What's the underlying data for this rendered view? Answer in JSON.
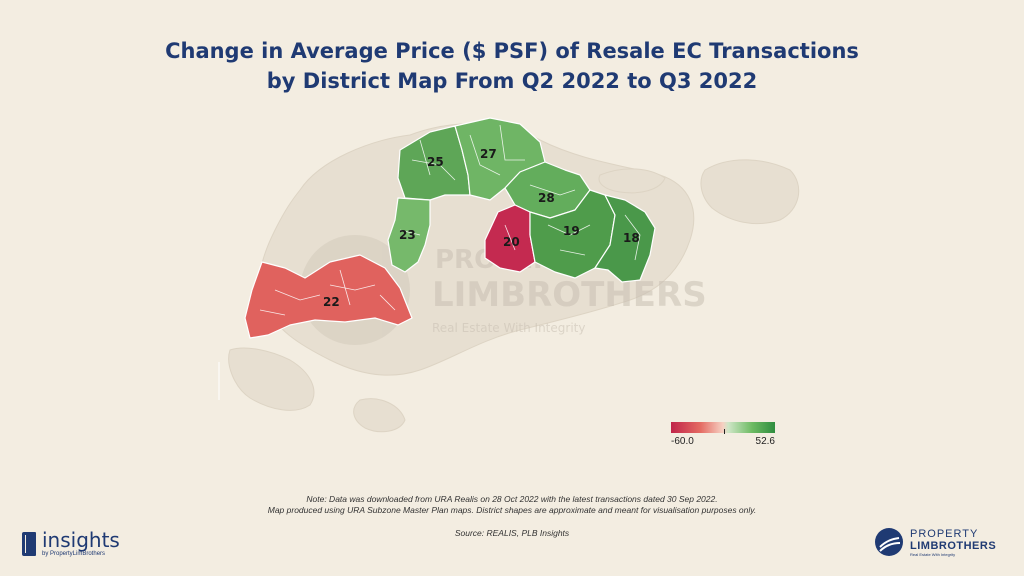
{
  "title": {
    "line1": "Change in Average Price ($ PSF) of Resale EC Transactions",
    "line2": "by District Map From Q2 2022 to Q3 2022"
  },
  "map": {
    "districts": [
      {
        "id": "25",
        "label": "25",
        "color": "#5ea657"
      },
      {
        "id": "27",
        "label": "27",
        "color": "#6fb565"
      },
      {
        "id": "28",
        "label": "28",
        "color": "#63ad5c"
      },
      {
        "id": "23",
        "label": "23",
        "color": "#76b96b"
      },
      {
        "id": "20",
        "label": "20",
        "color": "#c42a50"
      },
      {
        "id": "19",
        "label": "19",
        "color": "#4f9c4b"
      },
      {
        "id": "18",
        "label": "18",
        "color": "#4a984a"
      },
      {
        "id": "22",
        "label": "22",
        "color": "#e0625e"
      }
    ],
    "watermark": {
      "line1": "PROPERTY",
      "line2": "LIMBROTHERS",
      "line3": "Real Estate With Integrity"
    }
  },
  "legend": {
    "min_label": "-60.0",
    "max_label": "52.6",
    "min_value": -60.0,
    "max_value": 52.6,
    "low_color": "#c0254a",
    "high_color": "#2f8d3f"
  },
  "footer": {
    "note_line1": "Note: Data was downloaded from URA Realis on 28 Oct 2022 with the latest transactions dated 30 Sep 2022.",
    "note_line2": "Map produced using URA Subzone Master Plan maps. District shapes are approximate and meant for visualisation purposes only.",
    "source": "Source: REALIS, PLB Insights"
  },
  "branding": {
    "left_word": "insights",
    "left_sub": "by PropertyLimBrothers",
    "right_line1": "PROPERTY",
    "right_line2": "LIMBROTHERS",
    "right_line3": "Real Estate With Integrity"
  }
}
